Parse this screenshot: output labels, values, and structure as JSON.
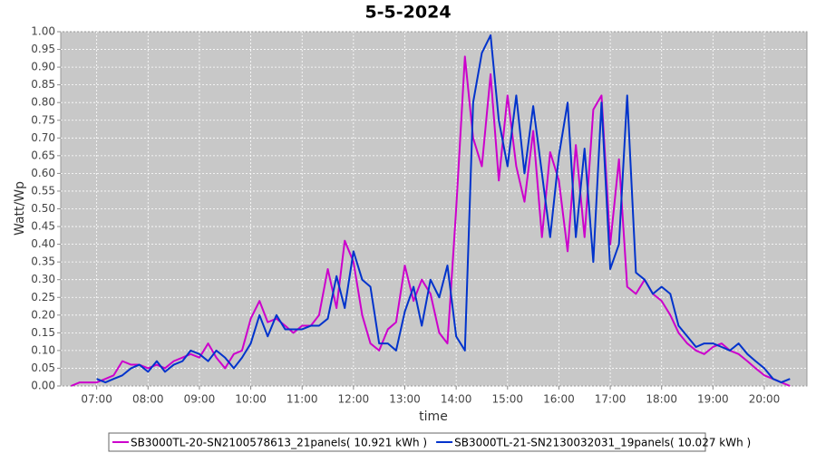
{
  "chart_data": {
    "type": "line",
    "title": "5-5-2024",
    "x_label": "time",
    "y_label": "Watt/Wp",
    "x": [
      6.5,
      6.67,
      6.83,
      7,
      7.17,
      7.33,
      7.5,
      7.67,
      7.83,
      8,
      8.17,
      8.33,
      8.5,
      8.67,
      8.83,
      9,
      9.17,
      9.33,
      9.5,
      9.67,
      9.83,
      10,
      10.17,
      10.33,
      10.5,
      10.67,
      10.83,
      11,
      11.17,
      11.33,
      11.5,
      11.67,
      11.83,
      12,
      12.17,
      12.33,
      12.5,
      12.67,
      12.83,
      13,
      13.17,
      13.33,
      13.5,
      13.67,
      13.83,
      14,
      14.17,
      14.33,
      14.5,
      14.67,
      14.83,
      15,
      15.17,
      15.33,
      15.5,
      15.67,
      15.83,
      16,
      16.17,
      16.33,
      16.5,
      16.67,
      16.83,
      17,
      17.17,
      17.33,
      17.5,
      17.67,
      17.83,
      18,
      18.17,
      18.33,
      18.5,
      18.67,
      18.83,
      19,
      19.17,
      19.33,
      19.5,
      19.67,
      19.83,
      20,
      20.17,
      20.33,
      20.5
    ],
    "series": [
      {
        "name": "SB3000TL-20-SN2100578613_21panels( 10.921 kWh )",
        "color": "#cc00cc",
        "values": [
          0,
          0.01,
          0.01,
          0.01,
          0.02,
          0.03,
          0.07,
          0.06,
          0.06,
          0.05,
          0.06,
          0.05,
          0.07,
          0.08,
          0.09,
          0.08,
          0.12,
          0.08,
          0.05,
          0.09,
          0.1,
          0.19,
          0.24,
          0.18,
          0.19,
          0.17,
          0.15,
          0.17,
          0.17,
          0.2,
          0.33,
          0.22,
          0.41,
          0.35,
          0.2,
          0.12,
          0.1,
          0.16,
          0.18,
          0.34,
          0.24,
          0.3,
          0.26,
          0.15,
          0.12,
          0.5,
          0.93,
          0.7,
          0.62,
          0.88,
          0.58,
          0.82,
          0.62,
          0.52,
          0.72,
          0.42,
          0.66,
          0.58,
          0.38,
          0.68,
          0.42,
          0.78,
          0.82,
          0.4,
          0.64,
          0.28,
          0.26,
          0.3,
          0.26,
          0.24,
          0.2,
          0.15,
          0.12,
          0.1,
          0.09,
          0.11,
          0.12,
          0.1,
          0.09,
          0.07,
          0.05,
          0.03,
          0.02,
          0.01,
          0
        ]
      },
      {
        "name": "SB3000TL-21-SN2130032031_19panels( 10.027 kWh )",
        "color": "#0033cc",
        "values": [
          null,
          null,
          null,
          0.02,
          0.01,
          0.02,
          0.03,
          0.05,
          0.06,
          0.04,
          0.07,
          0.04,
          0.06,
          0.07,
          0.1,
          0.09,
          0.07,
          0.1,
          0.08,
          0.05,
          0.08,
          0.12,
          0.2,
          0.14,
          0.2,
          0.16,
          0.16,
          0.16,
          0.17,
          0.17,
          0.19,
          0.31,
          0.22,
          0.38,
          0.3,
          0.28,
          0.12,
          0.12,
          0.1,
          0.21,
          0.28,
          0.17,
          0.3,
          0.25,
          0.34,
          0.14,
          0.1,
          0.8,
          0.94,
          0.99,
          0.75,
          0.62,
          0.82,
          0.6,
          0.79,
          0.6,
          0.42,
          0.65,
          0.8,
          0.42,
          0.67,
          0.35,
          0.8,
          0.33,
          0.4,
          0.82,
          0.32,
          0.3,
          0.26,
          0.28,
          0.26,
          0.17,
          0.14,
          0.11,
          0.12,
          0.12,
          0.11,
          0.1,
          0.12,
          0.09,
          0.07,
          0.05,
          0.02,
          0.01,
          0.02
        ]
      }
    ],
    "xlim": [
      6.3,
      20.83
    ],
    "xticks": [
      {
        "value": 7,
        "label": "07:00"
      },
      {
        "value": 8,
        "label": "08:00"
      },
      {
        "value": 9,
        "label": "09:00"
      },
      {
        "value": 10,
        "label": "10:00"
      },
      {
        "value": 11,
        "label": "11:00"
      },
      {
        "value": 12,
        "label": "12:00"
      },
      {
        "value": 13,
        "label": "13:00"
      },
      {
        "value": 14,
        "label": "14:00"
      },
      {
        "value": 15,
        "label": "15:00"
      },
      {
        "value": 16,
        "label": "16:00"
      },
      {
        "value": 17,
        "label": "17:00"
      },
      {
        "value": 18,
        "label": "18:00"
      },
      {
        "value": 19,
        "label": "19:00"
      },
      {
        "value": 20,
        "label": "20:00"
      }
    ],
    "ylim": [
      0,
      1
    ],
    "yticks": [
      {
        "value": 0,
        "label": "0.00"
      },
      0.05,
      {
        "value": 0.1,
        "label": "0.10"
      },
      0.15,
      {
        "value": 0.2,
        "label": "0.20"
      },
      0.25,
      {
        "value": 0.3,
        "label": "0.30"
      },
      0.35,
      {
        "value": 0.4,
        "label": "0.40"
      },
      0.45,
      {
        "value": 0.5,
        "label": "0.50"
      },
      0.55,
      {
        "value": 0.6,
        "label": "0.60"
      },
      0.65,
      {
        "value": 0.7,
        "label": "0.70"
      },
      0.75,
      {
        "value": 0.8,
        "label": "0.80"
      },
      0.85,
      {
        "value": 0.9,
        "label": "0.90"
      },
      0.95,
      {
        "value": 1,
        "label": "1.00"
      }
    ],
    "grid": true
  }
}
